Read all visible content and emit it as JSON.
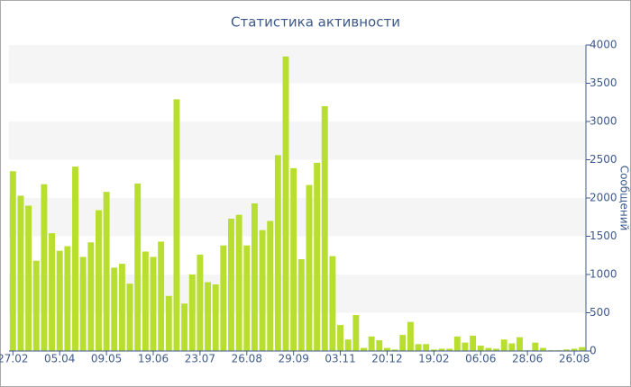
{
  "chart_data": {
    "type": "bar",
    "title": "Статистика активности",
    "y_label": "Сообщений",
    "categories": [
      "27.02",
      null,
      null,
      null,
      null,
      null,
      "05.04",
      null,
      null,
      null,
      null,
      null,
      "09.05",
      null,
      null,
      null,
      null,
      null,
      "19.06",
      null,
      null,
      null,
      null,
      null,
      "23.07",
      null,
      null,
      null,
      null,
      null,
      "26.08",
      null,
      null,
      null,
      null,
      null,
      "29.09",
      null,
      null,
      null,
      null,
      null,
      "03.11",
      null,
      null,
      null,
      null,
      null,
      "20.12",
      null,
      null,
      null,
      null,
      null,
      "19.02",
      null,
      null,
      null,
      null,
      null,
      "06.06",
      null,
      null,
      null,
      null,
      null,
      "28.06",
      null,
      null,
      null,
      null,
      null,
      "26.08",
      null
    ],
    "values": [
      2350,
      2030,
      1900,
      1180,
      2180,
      1540,
      1310,
      1370,
      2410,
      1230,
      1420,
      1840,
      2080,
      1090,
      1140,
      880,
      2190,
      1300,
      1230,
      1430,
      720,
      3290,
      620,
      1000,
      1260,
      900,
      870,
      1380,
      1730,
      1780,
      1380,
      1930,
      1580,
      1700,
      2560,
      3850,
      2390,
      1200,
      2170,
      2460,
      3200,
      1240,
      340,
      150,
      470,
      40,
      190,
      140,
      40,
      20,
      210,
      380,
      90,
      90,
      20,
      30,
      30,
      190,
      110,
      200,
      70,
      40,
      30,
      150,
      100,
      180,
      10,
      110,
      40,
      10,
      10,
      20,
      30,
      50
    ],
    "color": "#b8de2f",
    "ylim": [
      0,
      4000
    ],
    "yticks": [
      0,
      500,
      1000,
      1500,
      2000,
      2500,
      3000,
      3500,
      4000
    ],
    "grid_bands": true
  }
}
